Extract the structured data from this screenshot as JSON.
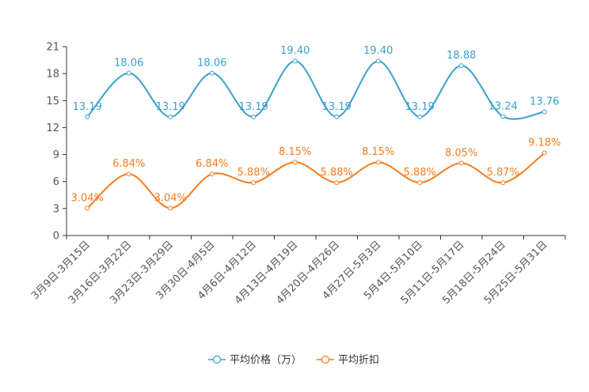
{
  "chart_data": {
    "type": "line",
    "title": "",
    "xlabel": "",
    "ylabel": "",
    "ylim": [
      0,
      21
    ],
    "yticks": [
      0,
      3,
      6,
      9,
      12,
      15,
      18,
      21
    ],
    "grid": false,
    "legend_position": "bottom-center",
    "categories": [
      "3月9日-3月15日",
      "3月16日-3月22日",
      "3月23日-3月29日",
      "3月30日-4月5日",
      "4月6日-4月12日",
      "4月13日-4月19日",
      "4月20日-4月26日",
      "4月27日-5月3日",
      "5月4日-5月10日",
      "5月11日-5月17日",
      "5月18日-5月24日",
      "5月25日-5月31日"
    ],
    "series": [
      {
        "name": "平均价格（万）",
        "color": "#3a9fd0",
        "values": [
          13.19,
          18.06,
          13.19,
          18.06,
          13.19,
          19.4,
          13.19,
          19.4,
          13.19,
          18.88,
          13.24,
          13.76
        ],
        "labels": [
          "13.19",
          "18.06",
          "13.19",
          "18.06",
          "13.19",
          "19.40",
          "13.19",
          "19.40",
          "13.19",
          "18.88",
          "13.24",
          "13.76"
        ]
      },
      {
        "name": "平均折扣",
        "color": "#f57c1f",
        "values": [
          3.04,
          6.84,
          3.04,
          6.84,
          5.88,
          8.15,
          5.88,
          8.15,
          5.88,
          8.05,
          5.87,
          9.18
        ],
        "labels": [
          "3.04%",
          "6.84%",
          "3.04%",
          "6.84%",
          "5.88%",
          "8.15%",
          "5.88%",
          "8.15%",
          "5.88%",
          "8.05%",
          "5.87%",
          "9.18%"
        ]
      }
    ]
  }
}
